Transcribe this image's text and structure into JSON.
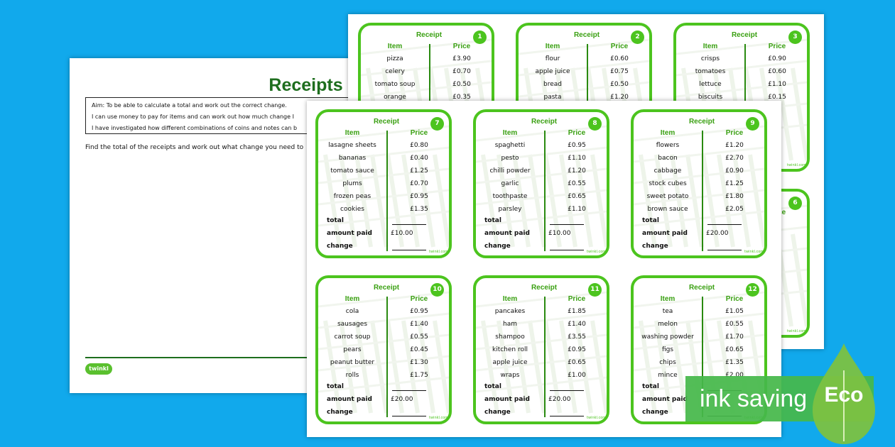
{
  "worksheet": {
    "title": "Receipts",
    "aim_lines": [
      "Aim: To be able to calculate a total and work out the correct change.",
      "I can use money to pay for items and can work out how much change I",
      "I have investigated how different combinations of coins and notes can b"
    ],
    "instruction": "Find the total of the receipts and work out what change you need to",
    "logo_text": "twinkl"
  },
  "labels": {
    "receipt": "Receipt",
    "item": "Item",
    "price": "Price",
    "total": "total",
    "amount_paid": "amount paid",
    "change": "change",
    "mini_logo": "twinkl.com"
  },
  "back_cards": [
    {
      "number": "1",
      "items": [
        [
          "pizza",
          "£3.90"
        ],
        [
          "celery",
          "£0.70"
        ],
        [
          "tomato soup",
          "£0.50"
        ],
        [
          "orange",
          "£0.35"
        ]
      ]
    },
    {
      "number": "2",
      "items": [
        [
          "flour",
          "£0.60"
        ],
        [
          "apple juice",
          "£0.75"
        ],
        [
          "bread",
          "£0.50"
        ],
        [
          "pasta",
          "£1.20"
        ]
      ]
    },
    {
      "number": "3",
      "items": [
        [
          "crisps",
          "£0.90"
        ],
        [
          "tomatoes",
          "£0.60"
        ],
        [
          "lettuce",
          "£1.10"
        ],
        [
          "biscuits",
          "£0.15"
        ]
      ]
    },
    {
      "number": "6",
      "items": []
    }
  ],
  "front_cards": [
    {
      "number": "7",
      "paid": "£10.00",
      "items": [
        [
          "lasagne sheets",
          "£0.80"
        ],
        [
          "bananas",
          "£0.40"
        ],
        [
          "tomato sauce",
          "£1.25"
        ],
        [
          "plums",
          "£0.70"
        ],
        [
          "frozen peas",
          "£0.95"
        ],
        [
          "cookies",
          "£1.35"
        ]
      ]
    },
    {
      "number": "8",
      "paid": "£10.00",
      "items": [
        [
          "spaghetti",
          "£0.95"
        ],
        [
          "pesto",
          "£1.10"
        ],
        [
          "chilli powder",
          "£1.20"
        ],
        [
          "garlic",
          "£0.55"
        ],
        [
          "toothpaste",
          "£0.65"
        ],
        [
          "parsley",
          "£1.10"
        ]
      ]
    },
    {
      "number": "9",
      "paid": "£20.00",
      "items": [
        [
          "flowers",
          "£1.20"
        ],
        [
          "bacon",
          "£2.70"
        ],
        [
          "cabbage",
          "£0.90"
        ],
        [
          "stock cubes",
          "£1.25"
        ],
        [
          "sweet potato",
          "£1.80"
        ],
        [
          "brown sauce",
          "£2.05"
        ]
      ]
    },
    {
      "number": "10",
      "paid": "£20.00",
      "items": [
        [
          "cola",
          "£0.95"
        ],
        [
          "sausages",
          "£1.40"
        ],
        [
          "carrot soup",
          "£0.55"
        ],
        [
          "pears",
          "£0.45"
        ],
        [
          "peanut butter",
          "£1.30"
        ],
        [
          "rolls",
          "£1.75"
        ]
      ]
    },
    {
      "number": "11",
      "paid": "£20.00",
      "items": [
        [
          "pancakes",
          "£1.85"
        ],
        [
          "ham",
          "£1.40"
        ],
        [
          "shampoo",
          "£3.55"
        ],
        [
          "kitchen roll",
          "£0.95"
        ],
        [
          "apple juice",
          "£0.65"
        ],
        [
          "wraps",
          "£1.00"
        ]
      ]
    },
    {
      "number": "12",
      "paid": "",
      "items": [
        [
          "tea",
          "£1.05"
        ],
        [
          "melon",
          "£0.55"
        ],
        [
          "washing powder",
          "£1.70"
        ],
        [
          "figs",
          "£0.65"
        ],
        [
          "chips",
          "£1.35"
        ],
        [
          "mince",
          "£2.00"
        ]
      ]
    }
  ],
  "badge": {
    "text": "ink saving",
    "label": "Eco",
    "color": "#46b84a"
  },
  "colors": {
    "background": "#11a9ec",
    "accent_green": "#4cc41e",
    "title_green": "#1e6e1e"
  }
}
